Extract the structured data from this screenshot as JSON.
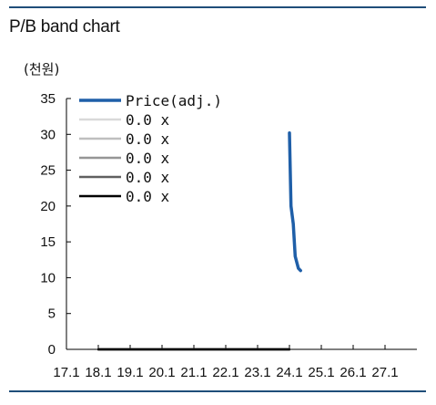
{
  "header": {
    "title": "P/B band chart",
    "unit": "(천원)"
  },
  "chart_data": {
    "type": "line",
    "title": "P/B band chart",
    "ylabel": "(천원)",
    "ylim": [
      0,
      35
    ],
    "yticks": [
      0,
      5,
      10,
      15,
      20,
      25,
      30,
      35
    ],
    "xlim": [
      2017.0,
      2028.0
    ],
    "xtick_labels": [
      "17.1",
      "18.1",
      "19.1",
      "20.1",
      "21.1",
      "22.1",
      "23.1",
      "24.1",
      "25.1",
      "26.1",
      "27.1"
    ],
    "legend_placement": "top-left",
    "grid": false,
    "series": [
      {
        "name": "Price(adj.)",
        "color": "#1f5fa8",
        "x": [
          2024.0,
          2024.05,
          2024.12,
          2024.18,
          2024.28,
          2024.35
        ],
        "y": [
          30.2,
          20.0,
          17.5,
          13.0,
          11.3,
          11.0
        ]
      },
      {
        "name": "0.0 x",
        "color": "#d9d9d9",
        "x": [
          2018.0,
          2024.0
        ],
        "y": [
          0,
          0
        ]
      },
      {
        "name": "0.0 x",
        "color": "#bfbfbf",
        "x": [
          2018.0,
          2024.0
        ],
        "y": [
          0,
          0
        ]
      },
      {
        "name": "0.0 x",
        "color": "#969696",
        "x": [
          2018.0,
          2024.0
        ],
        "y": [
          0,
          0
        ]
      },
      {
        "name": "0.0 x",
        "color": "#606060",
        "x": [
          2018.0,
          2024.0
        ],
        "y": [
          0,
          0
        ]
      },
      {
        "name": "0.0 x",
        "color": "#000000",
        "x": [
          2018.0,
          2024.0
        ],
        "y": [
          0,
          0
        ]
      }
    ]
  }
}
